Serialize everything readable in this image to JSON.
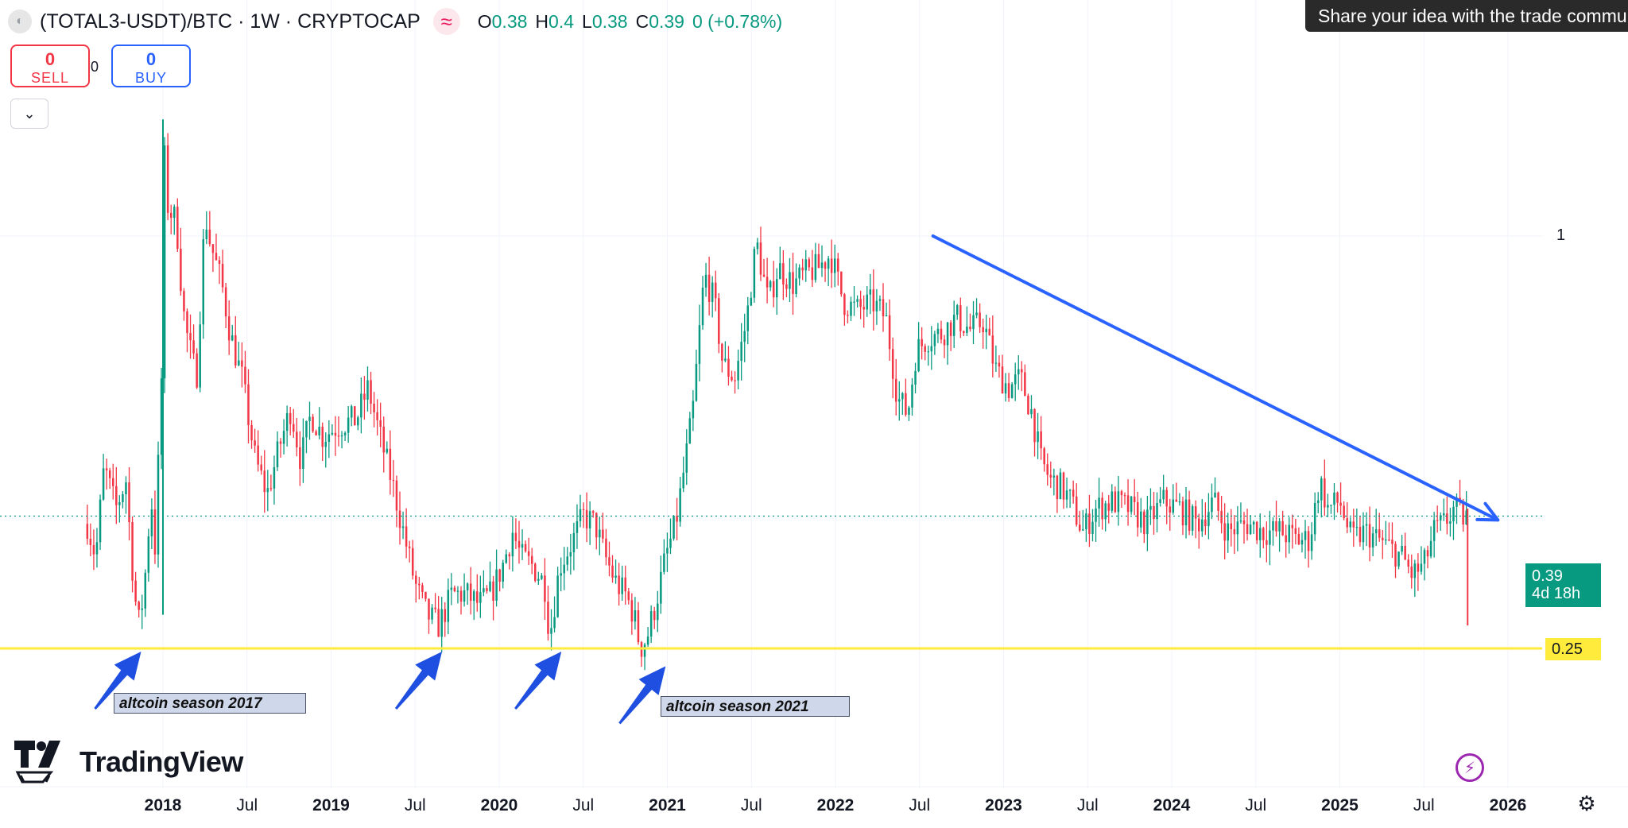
{
  "legend": {
    "symbol": "(TOTAL3-USDT)/BTC · 1W · CRYPTOCAP",
    "o_label": "O",
    "o_value": "0.38",
    "h_label": "H",
    "h_value": "0.4",
    "l_label": "L",
    "l_value": "0.38",
    "c_label": "C",
    "c_value": "0.39",
    "change": "0 (+0.78%)"
  },
  "trade": {
    "sell_count": "0",
    "sell_label": "SELL",
    "spread": "0",
    "buy_count": "0",
    "buy_label": "BUY"
  },
  "tooltip": "Share your idea with the trade community",
  "annotations": {
    "a2017": "altcoin season 2017",
    "a2021": "altcoin season 2021"
  },
  "price_scale": {
    "last_price": "0.39",
    "countdown": "4d 18h",
    "level": "0.25",
    "one": "1"
  },
  "brand": "TradingView",
  "colors": {
    "up": "#089981",
    "down": "#f23645",
    "trendline": "#2962ff",
    "support": "#ffeb3b",
    "arrow": "#1f4fe0"
  },
  "chart_data": {
    "type": "candlestick",
    "title": "(TOTAL3-USDT)/BTC · 1W · CRYPTOCAP",
    "interval": "1W",
    "y_scale": "log",
    "ylim": [
      0.21,
      1.6
    ],
    "xlim": [
      2017.55,
      2026.35
    ],
    "x_ticks": [
      {
        "x": 2018.0,
        "label": "2018"
      },
      {
        "x": 2018.5,
        "label": "Jul"
      },
      {
        "x": 2019.0,
        "label": "2019"
      },
      {
        "x": 2019.5,
        "label": "Jul"
      },
      {
        "x": 2020.0,
        "label": "2020"
      },
      {
        "x": 2020.5,
        "label": "Jul"
      },
      {
        "x": 2021.0,
        "label": "2021"
      },
      {
        "x": 2021.5,
        "label": "Jul"
      },
      {
        "x": 2022.0,
        "label": "2022"
      },
      {
        "x": 2022.5,
        "label": "Jul"
      },
      {
        "x": 2023.0,
        "label": "2023"
      },
      {
        "x": 2023.5,
        "label": "Jul"
      },
      {
        "x": 2024.0,
        "label": "2024"
      },
      {
        "x": 2024.5,
        "label": "Jul"
      },
      {
        "x": 2025.0,
        "label": "2025"
      },
      {
        "x": 2025.5,
        "label": "Jul"
      },
      {
        "x": 2026.0,
        "label": "2026"
      }
    ],
    "close_path": [
      [
        2017.55,
        0.38
      ],
      [
        2017.6,
        0.34
      ],
      [
        2017.65,
        0.46
      ],
      [
        2017.72,
        0.4
      ],
      [
        2017.78,
        0.44
      ],
      [
        2017.83,
        0.3
      ],
      [
        2017.86,
        0.27
      ],
      [
        2017.89,
        0.31
      ],
      [
        2017.93,
        0.42
      ],
      [
        2017.95,
        0.34
      ],
      [
        2017.99,
        0.6
      ],
      [
        2018.01,
        1.3
      ],
      [
        2018.03,
        1.1
      ],
      [
        2018.08,
        1.05
      ],
      [
        2018.12,
        0.78
      ],
      [
        2018.15,
        0.7
      ],
      [
        2018.2,
        0.62
      ],
      [
        2018.25,
        1.08
      ],
      [
        2018.28,
        0.98
      ],
      [
        2018.35,
        0.85
      ],
      [
        2018.4,
        0.72
      ],
      [
        2018.47,
        0.62
      ],
      [
        2018.55,
        0.47
      ],
      [
        2018.62,
        0.42
      ],
      [
        2018.7,
        0.5
      ],
      [
        2018.76,
        0.56
      ],
      [
        2018.82,
        0.47
      ],
      [
        2018.88,
        0.55
      ],
      [
        2018.95,
        0.51
      ],
      [
        2019.05,
        0.53
      ],
      [
        2019.15,
        0.54
      ],
      [
        2019.22,
        0.6
      ],
      [
        2019.3,
        0.5
      ],
      [
        2019.37,
        0.43
      ],
      [
        2019.43,
        0.37
      ],
      [
        2019.5,
        0.31
      ],
      [
        2019.57,
        0.28
      ],
      [
        2019.64,
        0.27
      ],
      [
        2019.72,
        0.3
      ],
      [
        2019.8,
        0.3
      ],
      [
        2019.88,
        0.29
      ],
      [
        2019.95,
        0.3
      ],
      [
        2020.02,
        0.33
      ],
      [
        2020.08,
        0.37
      ],
      [
        2020.13,
        0.34
      ],
      [
        2020.2,
        0.33
      ],
      [
        2020.27,
        0.31
      ],
      [
        2020.3,
        0.26
      ],
      [
        2020.36,
        0.33
      ],
      [
        2020.44,
        0.36
      ],
      [
        2020.5,
        0.39
      ],
      [
        2020.57,
        0.38
      ],
      [
        2020.63,
        0.34
      ],
      [
        2020.7,
        0.31
      ],
      [
        2020.75,
        0.3
      ],
      [
        2020.8,
        0.28
      ],
      [
        2020.84,
        0.25
      ],
      [
        2020.88,
        0.26
      ],
      [
        2020.93,
        0.29
      ],
      [
        2020.99,
        0.34
      ],
      [
        2021.05,
        0.38
      ],
      [
        2021.15,
        0.55
      ],
      [
        2021.22,
        0.88
      ],
      [
        2021.28,
        0.8
      ],
      [
        2021.33,
        0.65
      ],
      [
        2021.4,
        0.62
      ],
      [
        2021.47,
        0.75
      ],
      [
        2021.53,
        0.98
      ],
      [
        2021.6,
        0.8
      ],
      [
        2021.66,
        0.9
      ],
      [
        2021.75,
        0.85
      ],
      [
        2021.82,
        0.88
      ],
      [
        2021.9,
        0.9
      ],
      [
        2021.97,
        0.94
      ],
      [
        2022.05,
        0.8
      ],
      [
        2022.13,
        0.78
      ],
      [
        2022.22,
        0.8
      ],
      [
        2022.3,
        0.76
      ],
      [
        2022.37,
        0.58
      ],
      [
        2022.43,
        0.55
      ],
      [
        2022.48,
        0.68
      ],
      [
        2022.55,
        0.71
      ],
      [
        2022.63,
        0.72
      ],
      [
        2022.72,
        0.76
      ],
      [
        2022.8,
        0.73
      ],
      [
        2022.88,
        0.75
      ],
      [
        2022.95,
        0.64
      ],
      [
        2023.03,
        0.6
      ],
      [
        2023.1,
        0.62
      ],
      [
        2023.17,
        0.55
      ],
      [
        2023.22,
        0.47
      ],
      [
        2023.28,
        0.44
      ],
      [
        2023.34,
        0.43
      ],
      [
        2023.4,
        0.41
      ],
      [
        2023.47,
        0.37
      ],
      [
        2023.55,
        0.4
      ],
      [
        2023.65,
        0.41
      ],
      [
        2023.75,
        0.4
      ],
      [
        2023.85,
        0.38
      ],
      [
        2023.95,
        0.41
      ],
      [
        2024.05,
        0.4
      ],
      [
        2024.15,
        0.38
      ],
      [
        2024.25,
        0.41
      ],
      [
        2024.33,
        0.37
      ],
      [
        2024.45,
        0.38
      ],
      [
        2024.55,
        0.37
      ],
      [
        2024.65,
        0.37
      ],
      [
        2024.75,
        0.36
      ],
      [
        2024.82,
        0.36
      ],
      [
        2024.88,
        0.44
      ],
      [
        2024.93,
        0.4
      ],
      [
        2025.0,
        0.41
      ],
      [
        2025.07,
        0.36
      ],
      [
        2025.15,
        0.37
      ],
      [
        2025.23,
        0.36
      ],
      [
        2025.3,
        0.35
      ],
      [
        2025.37,
        0.34
      ],
      [
        2025.43,
        0.32
      ],
      [
        2025.5,
        0.33
      ],
      [
        2025.56,
        0.37
      ],
      [
        2025.62,
        0.38
      ],
      [
        2025.68,
        0.4
      ],
      [
        2025.72,
        0.39
      ],
      [
        2025.76,
        0.39
      ]
    ],
    "last_close": 0.39,
    "support_level": 0.25,
    "trendline": {
      "from": [
        2022.58,
        1.0
      ],
      "to": [
        2025.94,
        0.385
      ]
    },
    "annotations": [
      {
        "text": "altcoin season 2017",
        "at": [
          2017.87,
          0.25
        ]
      },
      {
        "text": "altcoin season 2021",
        "at": [
          2020.99,
          0.24
        ]
      }
    ],
    "arrow_marks": [
      2017.87,
      2019.66,
      2020.37,
      2020.99
    ]
  }
}
